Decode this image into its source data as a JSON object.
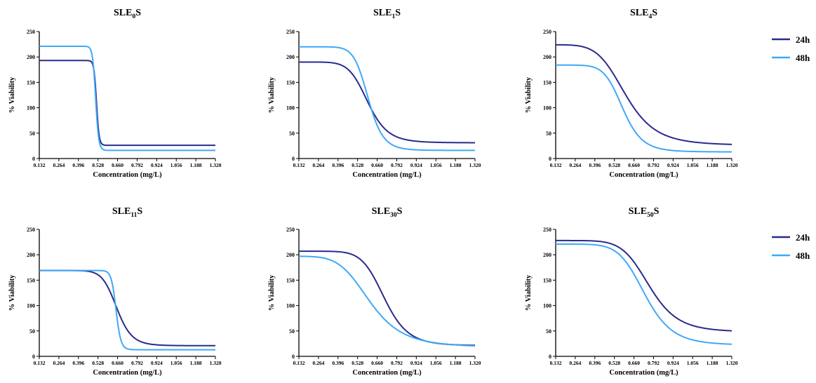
{
  "colors": {
    "24h": "#2B2A8C",
    "48h": "#3FA9F5",
    "axis": "#000000"
  },
  "legend_entries": [
    {
      "name": "24h",
      "color": "#2B2A8C"
    },
    {
      "name": "48h",
      "color": "#3FA9F5"
    }
  ],
  "chart_data": [
    {
      "type": "line",
      "title": "SLE0S",
      "title_base": "SLE",
      "title_sub": "0",
      "title_suffix": "S",
      "xlabel": "Concentration (mg/L)",
      "ylabel": "% Viability",
      "xlim": [
        0.132,
        1.32
      ],
      "ylim": [
        0,
        250
      ],
      "xticks": [
        "0.132",
        "0.264",
        "0.396",
        "0.528",
        "0.660",
        "0.792",
        "0.924",
        "1.056",
        "1.188",
        "1.320"
      ],
      "yticks": [
        "0",
        "50",
        "100",
        "150",
        "200",
        "250"
      ],
      "legend": false,
      "series": [
        {
          "name": "24h",
          "top": 193,
          "bottom": 26,
          "ec50": 0.518,
          "hill": 60
        },
        {
          "name": "48h",
          "top": 221,
          "bottom": 16,
          "ec50": 0.512,
          "hill": 50
        }
      ]
    },
    {
      "type": "line",
      "title": "SLE1S",
      "title_base": "SLE",
      "title_sub": "1",
      "title_suffix": "S",
      "xlabel": "Concentration (mg/L)",
      "ylabel": "% Viability",
      "xlim": [
        0.132,
        1.32
      ],
      "ylim": [
        0,
        250
      ],
      "xticks": [
        "0.132",
        "0.264",
        "0.396",
        "0.528",
        "0.660",
        "0.792",
        "0.924",
        "1.056",
        "1.188",
        "1.320"
      ],
      "yticks": [
        "0",
        "50",
        "100",
        "150",
        "200",
        "250"
      ],
      "legend": false,
      "series": [
        {
          "name": "24h",
          "top": 190,
          "bottom": 31,
          "ec50": 0.598,
          "hill": 9
        },
        {
          "name": "48h",
          "top": 220,
          "bottom": 16,
          "ec50": 0.6,
          "hill": 12
        }
      ]
    },
    {
      "type": "line",
      "title": "SLE4S",
      "title_base": "SLE",
      "title_sub": "4",
      "title_suffix": "S",
      "xlabel": "Concentration (mg/L)",
      "ylabel": "% Viability",
      "xlim": [
        0.132,
        1.32
      ],
      "ylim": [
        0,
        250
      ],
      "xticks": [
        "0.132",
        "0.264",
        "0.396",
        "0.528",
        "0.660",
        "0.792",
        "0.924",
        "1.056",
        "1.188",
        "1.320"
      ],
      "yticks": [
        "0",
        "50",
        "100",
        "150",
        "200",
        "250"
      ],
      "legend": true,
      "series": [
        {
          "name": "24h",
          "top": 224,
          "bottom": 26,
          "ec50": 0.605,
          "hill": 6
        },
        {
          "name": "48h",
          "top": 184,
          "bottom": 13,
          "ec50": 0.585,
          "hill": 9
        }
      ]
    },
    {
      "type": "line",
      "title": "SLE11S",
      "title_base": "SLE",
      "title_sub": "11",
      "title_suffix": "S",
      "xlabel": "Concentration (mg/L)",
      "ylabel": "% Viability",
      "xlim": [
        0.132,
        1.32
      ],
      "ylim": [
        0,
        250
      ],
      "xticks": [
        "0.132",
        "0.264",
        "0.396",
        "0.528",
        "0.660",
        "0.792",
        "0.924",
        "1.056",
        "1.188",
        "1.320"
      ],
      "yticks": [
        "0",
        "50",
        "100",
        "150",
        "200",
        "250"
      ],
      "legend": false,
      "series": [
        {
          "name": "24h",
          "top": 169,
          "bottom": 21,
          "ec50": 0.655,
          "hill": 13
        },
        {
          "name": "48h",
          "top": 169,
          "bottom": 13,
          "ec50": 0.65,
          "hill": 40
        }
      ]
    },
    {
      "type": "line",
      "title": "SLE30S",
      "title_base": "SLE",
      "title_sub": "30",
      "title_suffix": "S",
      "xlabel": "Concentration (mg/L)",
      "ylabel": "% Viability",
      "xlim": [
        0.132,
        1.32
      ],
      "ylim": [
        0,
        250
      ],
      "xticks": [
        "0.132",
        "0.264",
        "0.396",
        "0.528",
        "0.660",
        "0.792",
        "0.924",
        "1.056",
        "1.188",
        "1.320"
      ],
      "yticks": [
        "0",
        "50",
        "100",
        "150",
        "200",
        "250"
      ],
      "legend": false,
      "series": [
        {
          "name": "24h",
          "top": 207,
          "bottom": 21,
          "ec50": 0.71,
          "hill": 9
        },
        {
          "name": "48h",
          "top": 197,
          "bottom": 18,
          "ec50": 0.612,
          "hill": 5.5
        }
      ]
    },
    {
      "type": "line",
      "title": "SLE50S",
      "title_base": "SLE",
      "title_sub": "50",
      "title_suffix": "S",
      "xlabel": "Concentration (mg/L)",
      "ylabel": "% Viability",
      "xlim": [
        0.132,
        1.32
      ],
      "ylim": [
        0,
        250
      ],
      "xticks": [
        "0.132",
        "0.264",
        "0.396",
        "0.528",
        "0.660",
        "0.792",
        "0.924",
        "1.056",
        "1.188",
        "1.320"
      ],
      "yticks": [
        "0",
        "50",
        "100",
        "150",
        "200",
        "250"
      ],
      "legend": true,
      "series": [
        {
          "name": "24h",
          "top": 228,
          "bottom": 48,
          "ec50": 0.765,
          "hill": 8
        },
        {
          "name": "48h",
          "top": 221,
          "bottom": 22,
          "ec50": 0.735,
          "hill": 8
        }
      ]
    }
  ]
}
